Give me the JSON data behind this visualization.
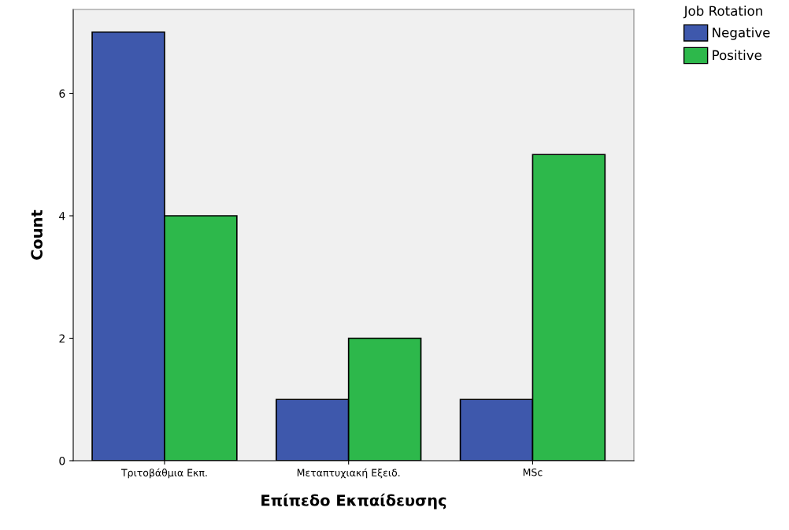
{
  "chart_data": {
    "type": "bar",
    "xlabel": "Επίπεδο Εκπαίδευσης",
    "ylabel": "Count",
    "categories": [
      "Τριτοβάθμια Εκπ.",
      "Μεταπτυχιακή Εξειδ.",
      "MSc"
    ],
    "series": [
      {
        "name": "Negative",
        "color": "#3e58ac",
        "values": [
          7,
          1,
          1
        ]
      },
      {
        "name": "Positive",
        "color": "#2db84b",
        "values": [
          4,
          2,
          5
        ]
      }
    ],
    "legend_title": "Job Rotation",
    "legend": "top right",
    "ylim": [
      0,
      7.37
    ],
    "yticks": [
      0,
      2,
      4,
      6
    ],
    "grid": false
  }
}
